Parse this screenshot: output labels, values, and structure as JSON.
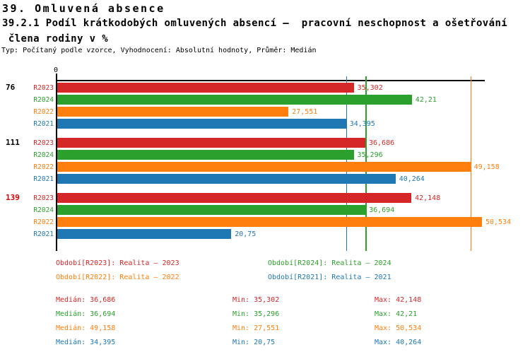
{
  "header": {
    "title": "39. Omluvená absence",
    "subtitle_line1": "39.2.1 Podíl krátkodobých omluvených absencí –  pracovní neschopnost a ošetřování",
    "subtitle_line2": " člena rodiny v %",
    "meta": "Typ: Počítaný podle vzorce, Vyhodnocení: Absolutní hodnoty, Průměr: Medián"
  },
  "chart_data": {
    "type": "bar",
    "orientation": "horizontal",
    "value_unit": "%",
    "decimal_separator": ",",
    "x_axis": {
      "zero_label": "0",
      "min": 0,
      "approx_max": 50.9,
      "position": "top",
      "gridlines": "median-only"
    },
    "series_order": [
      "R2023",
      "R2024",
      "R2022",
      "R2021"
    ],
    "series_colors": {
      "R2023": "#d62728",
      "R2024": "#2ca02c",
      "R2022": "#ff7f0e",
      "R2021": "#1f77b4"
    },
    "groups": [
      {
        "label": "76",
        "label_color": "#000000",
        "bars": [
          {
            "series": "R2023",
            "value": 35.302,
            "value_label": "35,302"
          },
          {
            "series": "R2024",
            "value": 42.21,
            "value_label": "42,21"
          },
          {
            "series": "R2022",
            "value": 27.551,
            "value_label": "27,551"
          },
          {
            "series": "R2021",
            "value": 34.395,
            "value_label": "34,395"
          }
        ]
      },
      {
        "label": "111",
        "label_color": "#000000",
        "bars": [
          {
            "series": "R2023",
            "value": 36.686,
            "value_label": "36,686"
          },
          {
            "series": "R2024",
            "value": 35.296,
            "value_label": "35,296"
          },
          {
            "series": "R2022",
            "value": 49.158,
            "value_label": "49,158"
          },
          {
            "series": "R2021",
            "value": 40.264,
            "value_label": "40,264"
          }
        ]
      },
      {
        "label": "139",
        "label_color": "#dd0000",
        "bars": [
          {
            "series": "R2023",
            "value": 42.148,
            "value_label": "42,148"
          },
          {
            "series": "R2024",
            "value": 36.694,
            "value_label": "36,694"
          },
          {
            "series": "R2022",
            "value": 50.534,
            "value_label": "50,534"
          },
          {
            "series": "R2021",
            "value": 20.75,
            "value_label": "20,75"
          }
        ]
      }
    ],
    "median_lines": [
      {
        "series": "R2023",
        "value": 36.686
      },
      {
        "series": "R2021",
        "value": 34.395
      },
      {
        "series": "R2022",
        "value": 49.158
      },
      {
        "series": "R2024",
        "value": 36.694
      }
    ]
  },
  "legend": {
    "items": [
      {
        "series": "R2023",
        "label": "Období[R2023]: Realita – 2023"
      },
      {
        "series": "R2024",
        "label": "Období[R2024]: Realita – 2024"
      },
      {
        "series": "R2022",
        "label": "Období[R2022]: Realita – 2022"
      },
      {
        "series": "R2021",
        "label": "Období[R2021]: Realita – 2021"
      }
    ]
  },
  "stats": {
    "rows": [
      {
        "series": "R2023",
        "median": "Medián: 36,686",
        "min": "Min: 35,302",
        "max": "Max: 42,148"
      },
      {
        "series": "R2024",
        "median": "Medián: 36,694",
        "min": "Min: 35,296",
        "max": "Max: 42,21"
      },
      {
        "series": "R2022",
        "median": "Medián: 49,158",
        "min": "Min: 27,551",
        "max": "Max: 50,534"
      },
      {
        "series": "R2021",
        "median": "Medián: 34,395",
        "min": "Min: 20,75",
        "max": "Max: 40,264"
      }
    ]
  }
}
